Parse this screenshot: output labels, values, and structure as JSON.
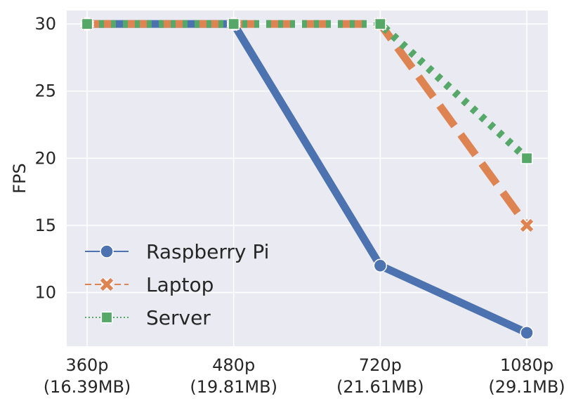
{
  "chart_data": {
    "type": "line",
    "title": "",
    "xlabel": "",
    "ylabel": "FPS",
    "categories": [
      {
        "line1": "360p",
        "line2": "(16.39MB)"
      },
      {
        "line1": "480p",
        "line2": "(19.81MB)"
      },
      {
        "line1": "720p",
        "line2": "(21.61MB)"
      },
      {
        "line1": "1080p",
        "line2": "(29.1MB)"
      }
    ],
    "ylim": [
      6,
      31
    ],
    "yticks": [
      10,
      15,
      20,
      25,
      30
    ],
    "grid": true,
    "legend_position": "bottom-left",
    "series": [
      {
        "name": "Raspberry Pi",
        "values": [
          30,
          30,
          12,
          7
        ],
        "color": "#4c72b0",
        "marker": "circle",
        "linestyle": "solid"
      },
      {
        "name": "Laptop",
        "values": [
          30,
          30,
          30,
          15
        ],
        "color": "#dd8452",
        "marker": "x",
        "linestyle": "dashed"
      },
      {
        "name": "Server",
        "values": [
          30,
          30,
          30,
          20
        ],
        "color": "#55a868",
        "marker": "square",
        "linestyle": "dotted"
      }
    ]
  },
  "colors": {
    "plot_background": "#eaeaf2",
    "grid": "#ffffff",
    "text": "#262626"
  }
}
